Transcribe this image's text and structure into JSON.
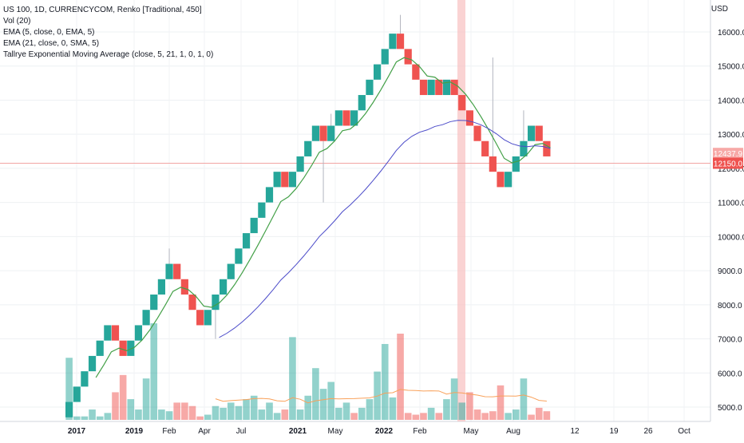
{
  "legend": {
    "line1": "US 100, 1D, CURRENCYCOM, Renko [Traditional, 450]",
    "line2": "Vol (20)",
    "line3": "EMA (5, close, 0, EMA, 5)",
    "line4": "EMA (21, close, 0, SMA, 5)",
    "line5": "Tallrye Exponential Moving Average (close, 5, 21, 1, 0, 1, 0)"
  },
  "currency": "USD",
  "price_labels": {
    "tag1": {
      "text": "12437.9",
      "color": "#f7a9a7"
    },
    "tag2": {
      "text": "12150.0",
      "color": "#ef5350"
    }
  },
  "colors": {
    "up": "#26a69a",
    "down": "#ef5350",
    "ema_fast": "#43a047",
    "ema_slow": "#4b4bc9",
    "vol_ma": "#f9a15a",
    "highlight": "#f8c4c4"
  },
  "chart_data": {
    "type": "renko",
    "box_size": 450,
    "x_tick_labels": [
      "2017",
      "2019",
      "Feb",
      "Apr",
      "Jul",
      "2021",
      "May",
      "2022",
      "Feb",
      "May",
      "Aug",
      "12",
      "19",
      "26",
      "Oct"
    ],
    "y_tick_labels": [
      "5000.0",
      "6000.0",
      "7000.0",
      "8000.0",
      "9000.0",
      "10000.0",
      "11000.0",
      "12000.0",
      "13000.0",
      "14000.0",
      "15000.0",
      "16000.0"
    ],
    "ylim": [
      4650,
      16950
    ],
    "bricks": [
      {
        "open": 4700,
        "close": 5150
      },
      {
        "open": 5150,
        "close": 5600
      },
      {
        "open": 5600,
        "close": 6050
      },
      {
        "open": 6050,
        "close": 6500
      },
      {
        "open": 6500,
        "close": 6950
      },
      {
        "open": 6950,
        "close": 7400
      },
      {
        "open": 7400,
        "close": 6950
      },
      {
        "open": 6950,
        "close": 6500
      },
      {
        "open": 6500,
        "close": 6950
      },
      {
        "open": 6950,
        "close": 7400
      },
      {
        "open": 7400,
        "close": 7850
      },
      {
        "open": 7850,
        "close": 8300
      },
      {
        "open": 8300,
        "close": 8750
      },
      {
        "open": 8750,
        "close": 9200
      },
      {
        "open": 9200,
        "close": 8750
      },
      {
        "open": 8750,
        "close": 8300
      },
      {
        "open": 8300,
        "close": 7850
      },
      {
        "open": 7850,
        "close": 7400
      },
      {
        "open": 7400,
        "close": 7850
      },
      {
        "open": 7850,
        "close": 8300
      },
      {
        "open": 8300,
        "close": 8750
      },
      {
        "open": 8750,
        "close": 9200
      },
      {
        "open": 9200,
        "close": 9650
      },
      {
        "open": 9650,
        "close": 10100
      },
      {
        "open": 10100,
        "close": 10550
      },
      {
        "open": 10550,
        "close": 11000
      },
      {
        "open": 11000,
        "close": 11450
      },
      {
        "open": 11450,
        "close": 11900
      },
      {
        "open": 11900,
        "close": 11450
      },
      {
        "open": 11450,
        "close": 11900
      },
      {
        "open": 11900,
        "close": 12350
      },
      {
        "open": 12350,
        "close": 12800
      },
      {
        "open": 12800,
        "close": 13250
      },
      {
        "open": 13250,
        "close": 12800
      },
      {
        "open": 12800,
        "close": 13250
      },
      {
        "open": 13250,
        "close": 13700
      },
      {
        "open": 13700,
        "close": 13250
      },
      {
        "open": 13250,
        "close": 13700
      },
      {
        "open": 13700,
        "close": 14150
      },
      {
        "open": 14150,
        "close": 14600
      },
      {
        "open": 14600,
        "close": 15050
      },
      {
        "open": 15050,
        "close": 15500
      },
      {
        "open": 15500,
        "close": 15950
      },
      {
        "open": 15950,
        "close": 15500
      },
      {
        "open": 15500,
        "close": 15050
      },
      {
        "open": 15050,
        "close": 14600
      },
      {
        "open": 14600,
        "close": 14150
      },
      {
        "open": 14150,
        "close": 14600
      },
      {
        "open": 14600,
        "close": 14150
      },
      {
        "open": 14150,
        "close": 14600
      },
      {
        "open": 14600,
        "close": 14150
      },
      {
        "open": 14150,
        "close": 13700
      },
      {
        "open": 13700,
        "close": 13250
      },
      {
        "open": 13250,
        "close": 12800
      },
      {
        "open": 12800,
        "close": 12350
      },
      {
        "open": 12350,
        "close": 11900
      },
      {
        "open": 11900,
        "close": 11450
      },
      {
        "open": 11450,
        "close": 11900
      },
      {
        "open": 11900,
        "close": 12350
      },
      {
        "open": 12350,
        "close": 12800
      },
      {
        "open": 12800,
        "close": 13250
      },
      {
        "open": 13250,
        "close": 12800
      },
      {
        "open": 12800,
        "close": 12350
      }
    ],
    "volume": [
      {
        "v": 6500,
        "up": true
      },
      {
        "v": 4800,
        "up": true
      },
      {
        "v": 4800,
        "up": true
      },
      {
        "v": 5000,
        "up": true
      },
      {
        "v": 4800,
        "up": true
      },
      {
        "v": 4900,
        "up": true
      },
      {
        "v": 5500,
        "up": false
      },
      {
        "v": 6000,
        "up": false
      },
      {
        "v": 5300,
        "up": true
      },
      {
        "v": 5000,
        "up": true
      },
      {
        "v": 5900,
        "up": true
      },
      {
        "v": 7500,
        "up": true
      },
      {
        "v": 5000,
        "up": true
      },
      {
        "v": 4950,
        "up": true
      },
      {
        "v": 5200,
        "up": false
      },
      {
        "v": 5200,
        "up": false
      },
      {
        "v": 5100,
        "up": false
      },
      {
        "v": 4800,
        "up": false
      },
      {
        "v": 4850,
        "up": true
      },
      {
        "v": 5100,
        "up": true
      },
      {
        "v": 5050,
        "up": true
      },
      {
        "v": 5200,
        "up": true
      },
      {
        "v": 5100,
        "up": true
      },
      {
        "v": 5300,
        "up": true
      },
      {
        "v": 5400,
        "up": true
      },
      {
        "v": 5000,
        "up": true
      },
      {
        "v": 5200,
        "up": true
      },
      {
        "v": 4900,
        "up": true
      },
      {
        "v": 5000,
        "up": false
      },
      {
        "v": 7100,
        "up": true
      },
      {
        "v": 5000,
        "up": true
      },
      {
        "v": 5400,
        "up": true
      },
      {
        "v": 6200,
        "up": true
      },
      {
        "v": 5600,
        "up": true
      },
      {
        "v": 5800,
        "up": true
      },
      {
        "v": 5050,
        "up": true
      },
      {
        "v": 5200,
        "up": true
      },
      {
        "v": 4900,
        "up": false
      },
      {
        "v": 5050,
        "up": true
      },
      {
        "v": 5300,
        "up": true
      },
      {
        "v": 6100,
        "up": true
      },
      {
        "v": 6900,
        "up": true
      },
      {
        "v": 5350,
        "up": true
      },
      {
        "v": 7200,
        "up": false
      },
      {
        "v": 4900,
        "up": false
      },
      {
        "v": 4850,
        "up": false
      },
      {
        "v": 4900,
        "up": false
      },
      {
        "v": 5050,
        "up": true
      },
      {
        "v": 4900,
        "up": false
      },
      {
        "v": 5300,
        "up": true
      },
      {
        "v": 5900,
        "up": true
      },
      {
        "v": 5200,
        "up": true
      },
      {
        "v": 5500,
        "up": false
      },
      {
        "v": 5000,
        "up": false
      },
      {
        "v": 4900,
        "up": false
      },
      {
        "v": 4950,
        "up": false
      },
      {
        "v": 5700,
        "up": false
      },
      {
        "v": 4900,
        "up": true
      },
      {
        "v": 5000,
        "up": true
      },
      {
        "v": 5900,
        "up": true
      },
      {
        "v": 4850,
        "up": false
      },
      {
        "v": 5050,
        "up": false
      },
      {
        "v": 4950,
        "up": false
      }
    ]
  }
}
